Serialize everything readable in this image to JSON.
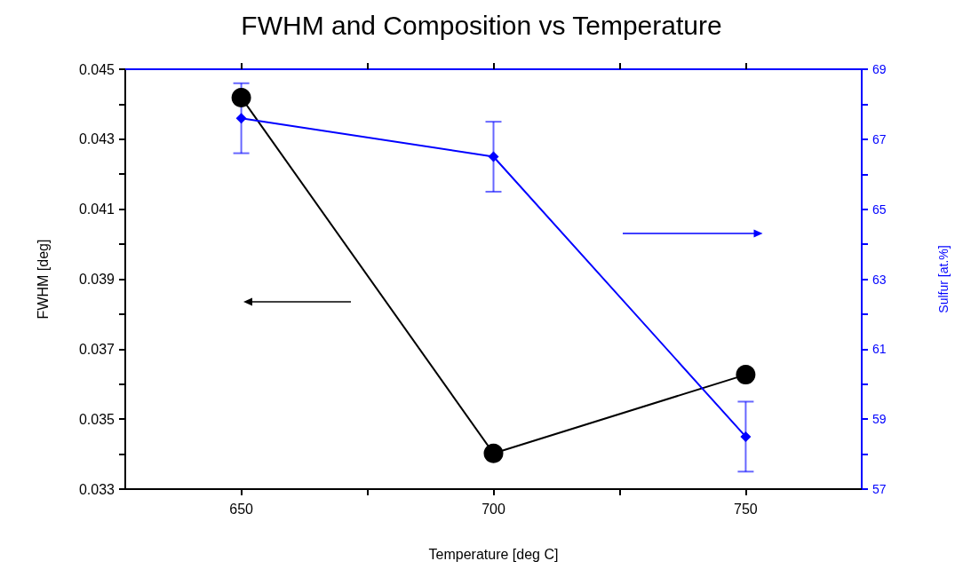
{
  "chart_data": {
    "type": "line",
    "title": "FWHM and Composition vs Temperature",
    "xlabel": "Temperature [deg C]",
    "ylabel": "FWHM [deg]",
    "y2label": "Sulfur [at.%]",
    "x": [
      650,
      700,
      750
    ],
    "series": [
      {
        "color": "#000000",
        "values": [
          0.04419,
          0.03402,
          0.03627
        ],
        "marker": "circle"
      },
      {
        "color": "#0000ff",
        "values": [
          67.6,
          66.5,
          58.5
        ],
        "axis": "y2",
        "marker": "diamond",
        "errors": [
          1,
          1,
          1
        ]
      }
    ],
    "xlim": [
      627,
      773
    ],
    "xticks": [
      650,
      {
        "value": 675,
        "label": null
      },
      700,
      {
        "value": 725,
        "label": null
      },
      750
    ],
    "ylim": [
      0.033,
      0.045
    ],
    "yticks": [
      0.033,
      {
        "value": 0.034,
        "label": null
      },
      0.035,
      {
        "value": 0.036,
        "label": null
      },
      0.037,
      {
        "value": 0.038,
        "label": null
      },
      0.039,
      {
        "value": 0.04,
        "label": null
      },
      0.041,
      {
        "value": 0.042,
        "label": null
      },
      0.043,
      {
        "value": 0.044,
        "label": null
      },
      0.045
    ],
    "y2lim": [
      57,
      69
    ],
    "y2ticks": [
      57,
      {
        "value": 58,
        "label": null
      },
      59,
      {
        "value": 60,
        "label": null
      },
      61,
      {
        "value": 62,
        "label": null
      },
      63,
      {
        "value": 64,
        "label": null
      },
      65,
      {
        "value": 66,
        "label": null
      },
      67,
      {
        "value": 68,
        "label": null
      },
      69
    ],
    "grid": false
  }
}
